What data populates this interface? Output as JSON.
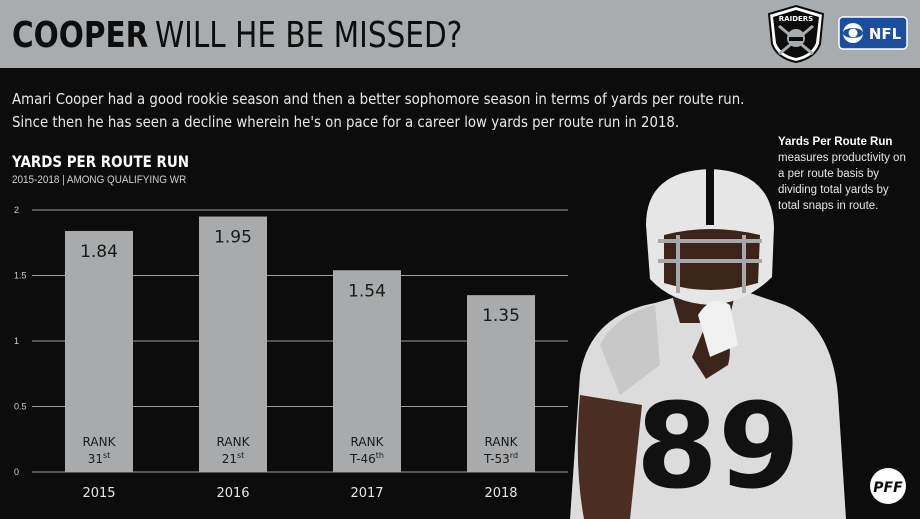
{
  "header": {
    "title_bold": "COOPER",
    "title_rest": "WILL HE BE MISSED?",
    "logo_text": "RAIDERS",
    "network_text": "NFL"
  },
  "intro": {
    "line1": "Amari Cooper had a good rookie season and then a better sophomore season in terms of yards per route run.",
    "line2": "Since then he has seen a decline wherein he's on pace for a career low yards per route run in 2018."
  },
  "sidebar": {
    "heading": "Yards Per Route Run",
    "body": "measures productivity on a per route basis by dividing total yards by total snaps in route."
  },
  "jersey_number": "89",
  "footer_logo": "PFF",
  "colors": {
    "header_bg": "#a9acae",
    "bar_fill": "#a8aaac",
    "background": "#0c0c0c",
    "text": "#ffffff"
  },
  "chart_data": {
    "type": "bar",
    "title": "YARDS PER ROUTE RUN",
    "subtitle": "2015-2018 | AMONG QUALIFYING WR",
    "categories": [
      "2015",
      "2016",
      "2017",
      "2018"
    ],
    "values": [
      1.84,
      1.95,
      1.54,
      1.35
    ],
    "value_labels": [
      "1.84",
      "1.95",
      "1.54",
      "1.35"
    ],
    "rank_label": "RANK",
    "ranks": [
      {
        "base": "31",
        "suffix": "st"
      },
      {
        "base": "21",
        "suffix": "st"
      },
      {
        "base": "T-46",
        "suffix": "th"
      },
      {
        "base": "T-53",
        "suffix": "rd"
      }
    ],
    "yticks": [
      "0",
      "0.5",
      "1",
      "1.5",
      "2"
    ],
    "ytick_values": [
      0,
      0.5,
      1,
      1.5,
      2
    ],
    "ylim": [
      0,
      2
    ],
    "grid": true
  }
}
